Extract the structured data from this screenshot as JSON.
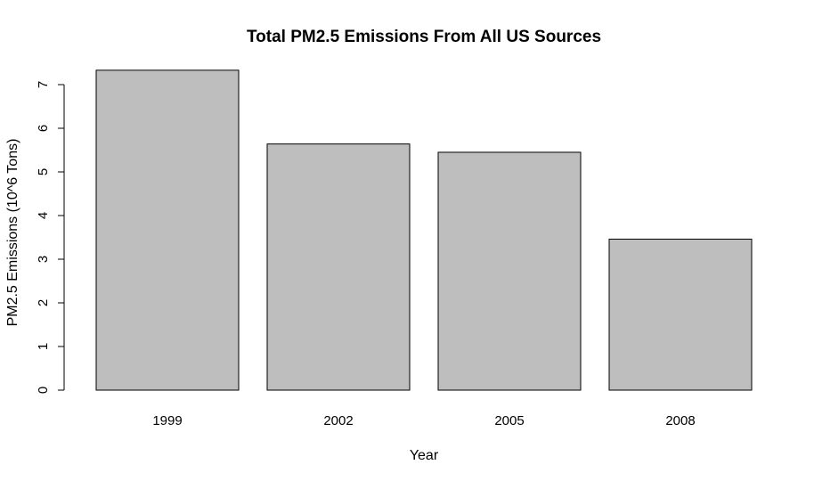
{
  "chart_data": {
    "type": "bar",
    "title": "Total PM2.5 Emissions From All US Sources",
    "xlabel": "Year",
    "ylabel": "PM2.5 Emissions (10^6 Tons)",
    "categories": [
      "1999",
      "2002",
      "2005",
      "2008"
    ],
    "values": [
      7.33,
      5.64,
      5.45,
      3.46
    ],
    "ylim": [
      0,
      7
    ],
    "yticks": [
      0,
      1,
      2,
      3,
      4,
      5,
      6,
      7
    ],
    "bar_color": "#bebebe",
    "grid": false,
    "legend": "none"
  }
}
